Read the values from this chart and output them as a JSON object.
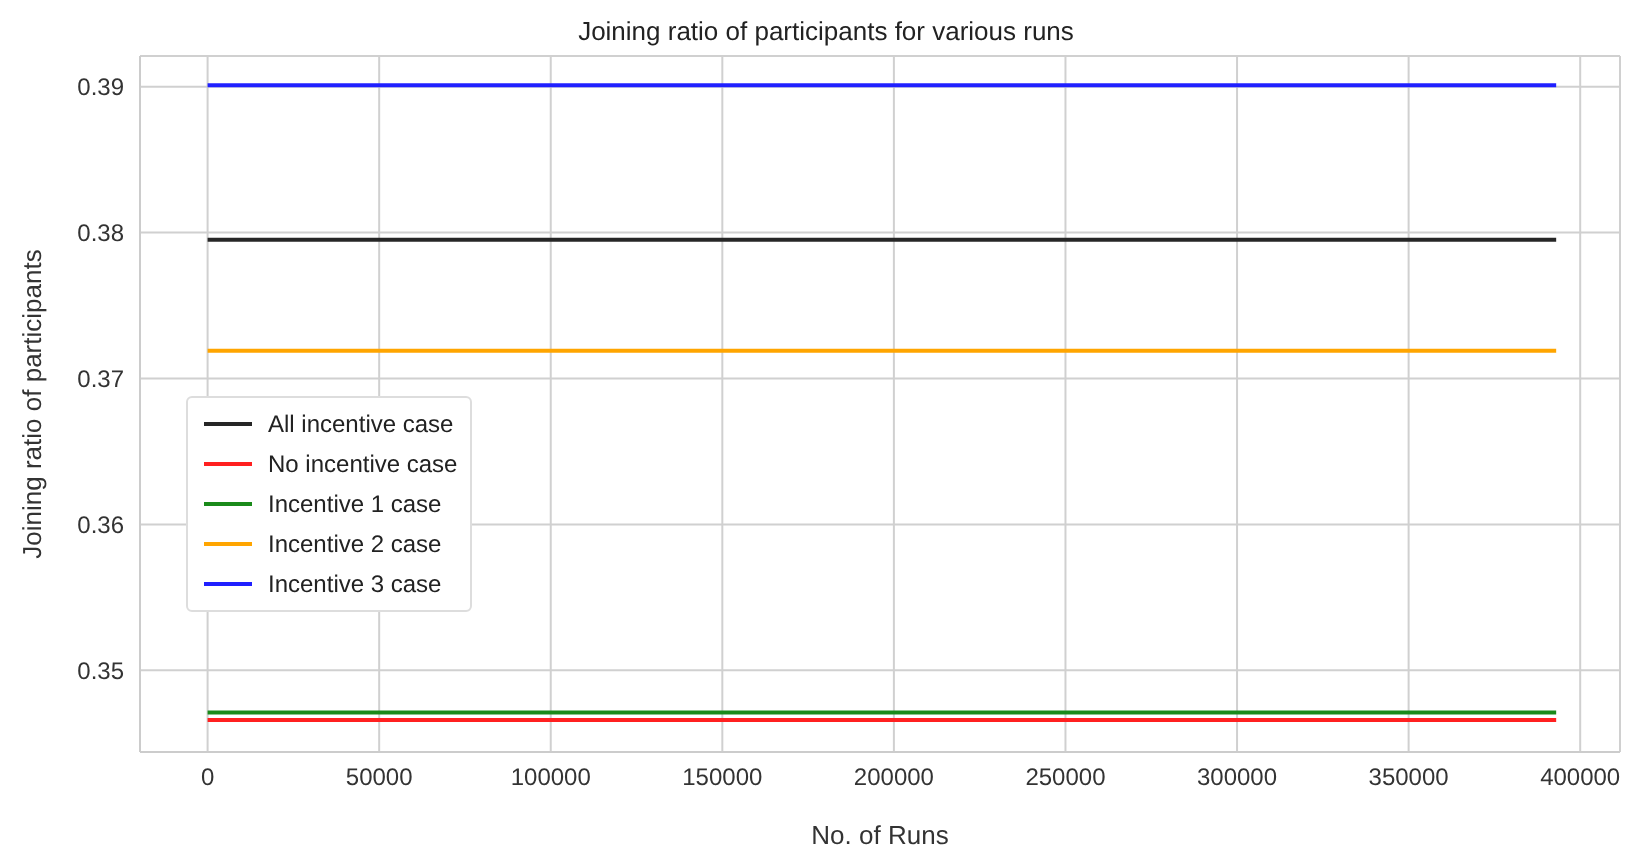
{
  "chart_data": {
    "type": "line",
    "title": "Joining ratio of participants for various runs",
    "xlabel": "No. of Runs",
    "ylabel": "Joining ratio of participants",
    "x": [
      0,
      393000
    ],
    "series": [
      {
        "name": "All incentive case",
        "color": "#262626",
        "values": [
          0.3795,
          0.3795
        ]
      },
      {
        "name": "No incentive case",
        "color": "#ff2020",
        "values": [
          0.3466,
          0.3466
        ]
      },
      {
        "name": "Incentive 1 case",
        "color": "#1a8a1a",
        "values": [
          0.3471,
          0.3471
        ]
      },
      {
        "name": "Incentive 2 case",
        "color": "#ffa500",
        "values": [
          0.3719,
          0.3719
        ]
      },
      {
        "name": "Incentive 3 case",
        "color": "#2020ff",
        "values": [
          0.3901,
          0.3901
        ]
      }
    ],
    "xlim": [
      -19700,
      411600
    ],
    "xticks": [
      0,
      50000,
      100000,
      150000,
      200000,
      250000,
      300000,
      350000,
      400000
    ],
    "ylim": [
      0.3444,
      0.3921
    ],
    "yticks": [
      0.35,
      0.36,
      0.37,
      0.38,
      0.39
    ],
    "grid": true,
    "legend": "center left",
    "marker": "none",
    "line_style": "solid"
  }
}
